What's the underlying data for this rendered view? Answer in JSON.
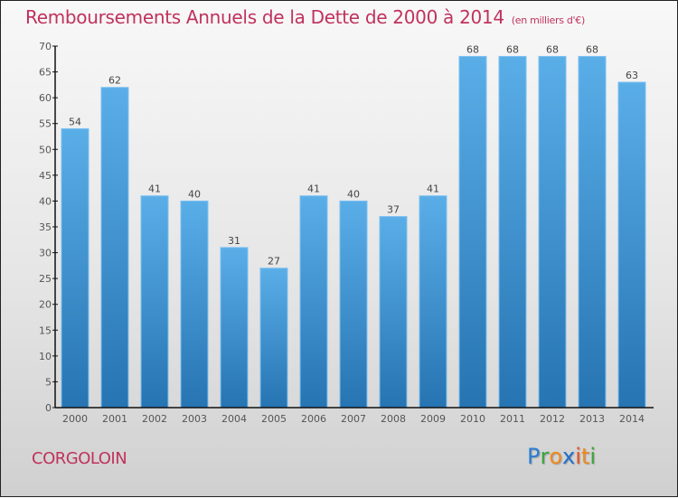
{
  "chart_data": {
    "type": "bar",
    "title": "Remboursements Annuels de la Dette de 2000 à 2014",
    "subtitle": "(en milliers d'€)",
    "xlabel": "",
    "ylabel": "",
    "categories": [
      "2000",
      "2001",
      "2002",
      "2003",
      "2004",
      "2005",
      "2006",
      "2007",
      "2008",
      "2009",
      "2010",
      "2011",
      "2012",
      "2013",
      "2014"
    ],
    "values": [
      54,
      62,
      41,
      40,
      31,
      27,
      41,
      40,
      37,
      41,
      68,
      68,
      68,
      68,
      63
    ],
    "ylim": [
      0,
      70
    ],
    "yticks": [
      0,
      5,
      10,
      15,
      20,
      25,
      30,
      35,
      40,
      45,
      50,
      55,
      60,
      65,
      70
    ],
    "grid": false,
    "bar_color": "#3a8fd0",
    "legend": "none"
  },
  "footer": {
    "commune": "CORGOLOIN",
    "logo": [
      {
        "ch": "P",
        "color": "#2a7fd4"
      },
      {
        "ch": "r",
        "color": "#3aa63a"
      },
      {
        "ch": "o",
        "color": "#f08a1c"
      },
      {
        "ch": "x",
        "color": "#1e6fc8"
      },
      {
        "ch": "i",
        "color": "#e8501e"
      },
      {
        "ch": "t",
        "color": "#f08a1c"
      },
      {
        "ch": "i",
        "color": "#3aa63a"
      }
    ]
  }
}
